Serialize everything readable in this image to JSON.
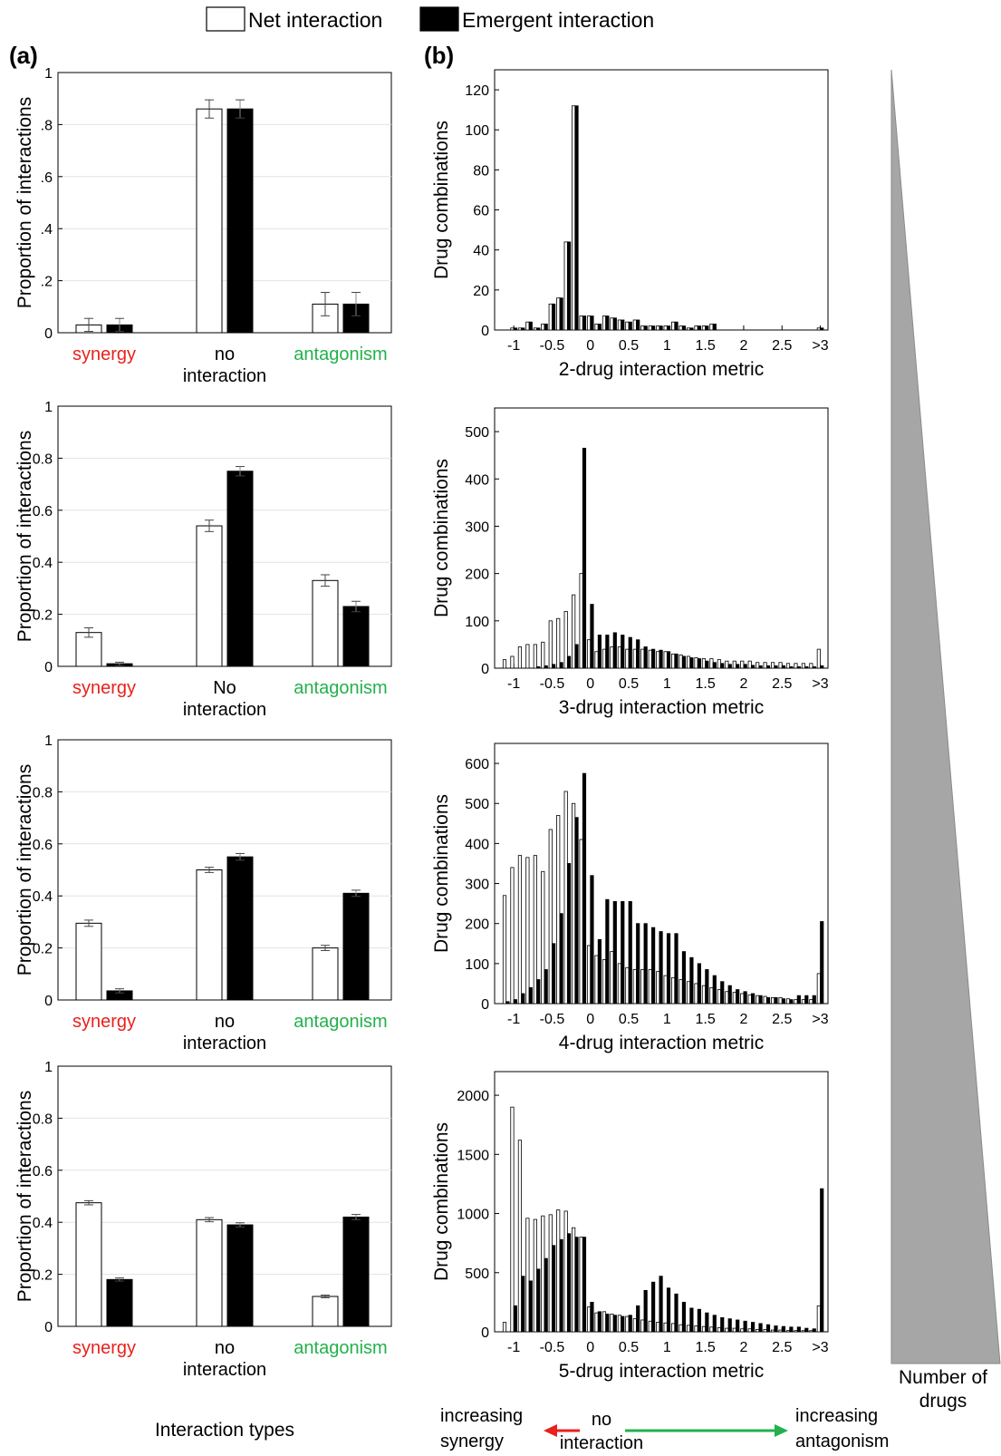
{
  "legend": {
    "entries": [
      {
        "label": "Net interaction",
        "color": "#ffffff"
      },
      {
        "label": "Emergent interaction",
        "color": "#000000"
      }
    ]
  },
  "panel_labels": {
    "a": "(a)",
    "b": "(b)"
  },
  "bottom": {
    "xlabel_a": "Interaction types",
    "left_lines": [
      "increasing",
      "synergy"
    ],
    "mid_lines": [
      "no",
      "interaction"
    ],
    "right_lines": [
      "increasing",
      "antagonism"
    ],
    "arrow_left_color": "#e8211d",
    "arrow_right_color": "#22b14c"
  },
  "wedge": {
    "label_lines": [
      "Number of",
      "drugs"
    ],
    "color": "#a6a6a6"
  },
  "colors": {
    "synergy": "#e8211d",
    "antagonism": "#22b14c",
    "net": "#ffffff",
    "emergent": "#000000"
  },
  "chart_data": [
    {
      "type": "bar",
      "ylabel": "Proportion of interactions",
      "ylim": [
        0,
        1
      ],
      "ytick_labels": [
        "0",
        ".2",
        ".4",
        ".6",
        ".8",
        "1"
      ],
      "categories": [
        [
          "synergy"
        ],
        [
          "no",
          "interaction"
        ],
        [
          "antagonism"
        ]
      ],
      "category_colors": [
        "#e8211d",
        "#000000",
        "#22b14c"
      ],
      "series": [
        {
          "name": "Net interaction",
          "values": [
            0.03,
            0.86,
            0.11
          ],
          "err": [
            0.025,
            0.035,
            0.045
          ]
        },
        {
          "name": "Emergent interaction",
          "values": [
            0.03,
            0.86,
            0.11
          ],
          "err": [
            0.025,
            0.035,
            0.045
          ]
        }
      ]
    },
    {
      "type": "bar",
      "ylabel": "Proportion of interactions",
      "ylim": [
        0,
        1
      ],
      "ytick_labels": [
        "0",
        "0.2",
        "0.4",
        "0.6",
        "0.8",
        "1"
      ],
      "categories": [
        [
          "synergy"
        ],
        [
          "No",
          "interaction"
        ],
        [
          "antagonism"
        ]
      ],
      "category_colors": [
        "#e8211d",
        "#000000",
        "#22b14c"
      ],
      "series": [
        {
          "name": "Net interaction",
          "values": [
            0.13,
            0.54,
            0.33
          ],
          "err": [
            0.018,
            0.022,
            0.022
          ]
        },
        {
          "name": "Emergent interaction",
          "values": [
            0.01,
            0.75,
            0.23
          ],
          "err": [
            0.006,
            0.018,
            0.02
          ]
        }
      ]
    },
    {
      "type": "bar",
      "ylabel": "Proportion of interactions",
      "ylim": [
        0,
        1
      ],
      "ytick_labels": [
        "0",
        "0.2",
        "0.4",
        "0.6",
        "0.8",
        "1"
      ],
      "categories": [
        [
          "synergy"
        ],
        [
          "no",
          "interaction"
        ],
        [
          "antagonism"
        ]
      ],
      "category_colors": [
        "#e8211d",
        "#000000",
        "#22b14c"
      ],
      "series": [
        {
          "name": "Net interaction",
          "values": [
            0.295,
            0.5,
            0.2
          ],
          "err": [
            0.012,
            0.01,
            0.01
          ]
        },
        {
          "name": "Emergent interaction",
          "values": [
            0.035,
            0.55,
            0.41
          ],
          "err": [
            0.008,
            0.013,
            0.012
          ]
        }
      ]
    },
    {
      "type": "bar",
      "ylabel": "Proportion of interactions",
      "ylim": [
        0,
        1
      ],
      "ytick_labels": [
        "0",
        "0.2",
        "0.4",
        "0.6",
        "0.8",
        "1"
      ],
      "categories": [
        [
          "synergy"
        ],
        [
          "no",
          "interaction"
        ],
        [
          "antagonism"
        ]
      ],
      "category_colors": [
        "#e8211d",
        "#000000",
        "#22b14c"
      ],
      "series": [
        {
          "name": "Net interaction",
          "values": [
            0.475,
            0.41,
            0.115
          ],
          "err": [
            0.008,
            0.008,
            0.005
          ]
        },
        {
          "name": "Emergent interaction",
          "values": [
            0.18,
            0.39,
            0.42
          ],
          "err": [
            0.006,
            0.008,
            0.01
          ]
        }
      ]
    },
    {
      "type": "bar",
      "xlabel": "2-drug interaction metric",
      "ylabel": "Drug combinations",
      "ylim": [
        0,
        130
      ],
      "yticks": [
        0,
        20,
        40,
        60,
        80,
        100,
        120
      ],
      "x_range": [
        -1.25,
        3.1
      ],
      "xticks": [
        -1,
        -0.5,
        0,
        0.5,
        1,
        1.5,
        2,
        2.5,
        3
      ],
      "xtick_labels": [
        "-1",
        "-0.5",
        "0",
        "0.5",
        "1",
        "1.5",
        "2",
        "2.5",
        ">3"
      ],
      "bin_centers": [
        -1.2,
        -1.1,
        -1.0,
        -0.9,
        -0.8,
        -0.7,
        -0.6,
        -0.5,
        -0.4,
        -0.3,
        -0.2,
        -0.1,
        0.0,
        0.1,
        0.2,
        0.3,
        0.4,
        0.5,
        0.6,
        0.7,
        0.8,
        0.9,
        1.0,
        1.1,
        1.2,
        1.3,
        1.4,
        1.5,
        1.6,
        1.7,
        1.8,
        1.9,
        2.0,
        2.1,
        2.2,
        2.3,
        2.4,
        2.5,
        2.6,
        2.7,
        2.8,
        2.9,
        3.0
      ],
      "series": [
        {
          "name": "Net interaction",
          "values": [
            0,
            0,
            1,
            1,
            4,
            1,
            3,
            13,
            16,
            44,
            112,
            7,
            7,
            3,
            7,
            6,
            5,
            4,
            5,
            2,
            2,
            2,
            2,
            4,
            2,
            1,
            2,
            2,
            3,
            0,
            0,
            0,
            0,
            0,
            0,
            0,
            0,
            0,
            0,
            0,
            0,
            0,
            1
          ]
        },
        {
          "name": "Emergent interaction",
          "values": [
            0,
            0,
            1,
            1,
            4,
            1,
            3,
            13,
            16,
            44,
            112,
            7,
            7,
            3,
            7,
            6,
            5,
            4,
            5,
            2,
            2,
            2,
            2,
            4,
            2,
            1,
            2,
            2,
            3,
            0,
            0,
            0,
            0,
            0,
            0,
            0,
            0,
            0,
            0,
            0,
            0,
            0,
            1
          ]
        }
      ]
    },
    {
      "type": "bar",
      "xlabel": "3-drug interaction metric",
      "ylabel": "Drug combinations",
      "ylim": [
        0,
        550
      ],
      "yticks": [
        0,
        100,
        200,
        300,
        400,
        500
      ],
      "x_range": [
        -1.25,
        3.1
      ],
      "xticks": [
        -1,
        -0.5,
        0,
        0.5,
        1,
        1.5,
        2,
        2.5,
        3
      ],
      "xtick_labels": [
        "-1",
        "-0.5",
        "0",
        "0.5",
        "1",
        "1.5",
        "2",
        "2.5",
        ">3"
      ],
      "bin_centers": [
        -1.2,
        -1.1,
        -1.0,
        -0.9,
        -0.8,
        -0.7,
        -0.6,
        -0.5,
        -0.4,
        -0.3,
        -0.2,
        -0.1,
        0.0,
        0.1,
        0.2,
        0.3,
        0.4,
        0.5,
        0.6,
        0.7,
        0.8,
        0.9,
        1.0,
        1.1,
        1.2,
        1.3,
        1.4,
        1.5,
        1.6,
        1.7,
        1.8,
        1.9,
        2.0,
        2.1,
        2.2,
        2.3,
        2.4,
        2.5,
        2.6,
        2.7,
        2.8,
        2.9,
        3.0
      ],
      "series": [
        {
          "name": "Net interaction",
          "values": [
            0,
            18,
            25,
            45,
            50,
            50,
            55,
            100,
            105,
            120,
            155,
            200,
            60,
            35,
            40,
            45,
            45,
            40,
            40,
            40,
            38,
            35,
            35,
            30,
            28,
            25,
            22,
            20,
            20,
            18,
            15,
            15,
            15,
            15,
            12,
            12,
            12,
            12,
            10,
            10,
            10,
            10,
            40
          ]
        },
        {
          "name": "Emergent interaction",
          "values": [
            0,
            0,
            0,
            0,
            0,
            3,
            5,
            8,
            12,
            25,
            50,
            465,
            135,
            70,
            70,
            75,
            70,
            65,
            60,
            45,
            40,
            38,
            35,
            30,
            25,
            22,
            20,
            15,
            12,
            10,
            8,
            8,
            8,
            6,
            5,
            5,
            5,
            5,
            3,
            3,
            3,
            3,
            5
          ]
        }
      ]
    },
    {
      "type": "bar",
      "xlabel": "4-drug interaction metric",
      "ylabel": "Drug combinations",
      "ylim": [
        0,
        650
      ],
      "yticks": [
        0,
        100,
        200,
        300,
        400,
        500,
        600
      ],
      "x_range": [
        -1.25,
        3.1
      ],
      "xticks": [
        -1,
        -0.5,
        0,
        0.5,
        1,
        1.5,
        2,
        2.5,
        3
      ],
      "xtick_labels": [
        "-1",
        "-0.5",
        "0",
        "0.5",
        "1",
        "1.5",
        "2",
        "2.5",
        ">3"
      ],
      "bin_centers": [
        -1.2,
        -1.1,
        -1.0,
        -0.9,
        -0.8,
        -0.7,
        -0.6,
        -0.5,
        -0.4,
        -0.3,
        -0.2,
        -0.1,
        0.0,
        0.1,
        0.2,
        0.3,
        0.4,
        0.5,
        0.6,
        0.7,
        0.8,
        0.9,
        1.0,
        1.1,
        1.2,
        1.3,
        1.4,
        1.5,
        1.6,
        1.7,
        1.8,
        1.9,
        2.0,
        2.1,
        2.2,
        2.3,
        2.4,
        2.5,
        2.6,
        2.7,
        2.8,
        2.9,
        3.0
      ],
      "series": [
        {
          "name": "Net interaction",
          "values": [
            0,
            270,
            340,
            370,
            365,
            370,
            330,
            435,
            470,
            530,
            500,
            410,
            145,
            120,
            110,
            130,
            100,
            90,
            85,
            85,
            85,
            80,
            70,
            65,
            60,
            55,
            50,
            45,
            40,
            35,
            30,
            28,
            25,
            22,
            20,
            18,
            15,
            15,
            12,
            10,
            10,
            10,
            75
          ]
        },
        {
          "name": "Emergent interaction",
          "values": [
            0,
            5,
            10,
            25,
            40,
            60,
            85,
            150,
            225,
            350,
            465,
            575,
            320,
            160,
            260,
            255,
            255,
            255,
            200,
            200,
            190,
            180,
            175,
            175,
            130,
            115,
            100,
            85,
            70,
            55,
            45,
            35,
            30,
            25,
            20,
            15,
            15,
            12,
            10,
            20,
            20,
            20,
            205
          ]
        }
      ]
    },
    {
      "type": "bar",
      "xlabel": "5-drug interaction metric",
      "ylabel": "Drug combinations",
      "ylim": [
        0,
        2200
      ],
      "yticks": [
        0,
        500,
        1000,
        1500,
        2000
      ],
      "x_range": [
        -1.25,
        3.1
      ],
      "xticks": [
        -1,
        -0.5,
        0,
        0.5,
        1,
        1.5,
        2,
        2.5,
        3
      ],
      "xtick_labels": [
        "-1",
        "-0.5",
        "0",
        "0.5",
        "1",
        "1.5",
        "2",
        "2.5",
        ">3"
      ],
      "bin_centers": [
        -1.2,
        -1.1,
        -1.0,
        -0.9,
        -0.8,
        -0.7,
        -0.6,
        -0.5,
        -0.4,
        -0.3,
        -0.2,
        -0.1,
        0.0,
        0.1,
        0.2,
        0.3,
        0.4,
        0.5,
        0.6,
        0.7,
        0.8,
        0.9,
        1.0,
        1.1,
        1.2,
        1.3,
        1.4,
        1.5,
        1.6,
        1.7,
        1.8,
        1.9,
        2.0,
        2.1,
        2.2,
        2.3,
        2.4,
        2.5,
        2.6,
        2.7,
        2.8,
        2.9,
        3.0
      ],
      "series": [
        {
          "name": "Net interaction",
          "values": [
            0,
            80,
            1900,
            1620,
            960,
            950,
            980,
            990,
            1030,
            1020,
            880,
            800,
            210,
            160,
            170,
            150,
            140,
            130,
            110,
            100,
            90,
            80,
            75,
            70,
            60,
            55,
            50,
            45,
            40,
            35,
            30,
            30,
            25,
            25,
            20,
            20,
            15,
            15,
            10,
            10,
            10,
            10,
            220
          ]
        },
        {
          "name": "Emergent interaction",
          "values": [
            0,
            0,
            220,
            470,
            430,
            530,
            620,
            730,
            780,
            830,
            800,
            800,
            250,
            170,
            150,
            140,
            130,
            140,
            220,
            350,
            420,
            470,
            370,
            320,
            250,
            200,
            190,
            160,
            140,
            120,
            110,
            100,
            90,
            80,
            70,
            60,
            50,
            45,
            40,
            40,
            30,
            25,
            1210
          ]
        }
      ]
    }
  ]
}
